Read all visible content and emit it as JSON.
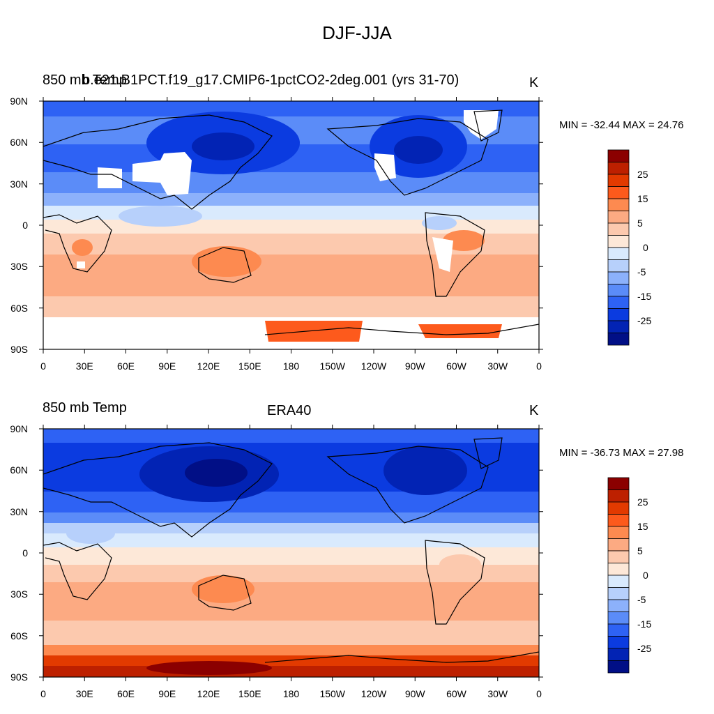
{
  "figure": {
    "title": "DJF-JJA"
  },
  "colorbar": {
    "labels": [
      "25",
      "15",
      "5",
      "0",
      "-5",
      "-15",
      "-25"
    ],
    "colors": [
      "#8b0000",
      "#bd2000",
      "#e23a00",
      "#fd5a1c",
      "#fd8a50",
      "#fcaa82",
      "#fcc9ae",
      "#fde8d8",
      "#d9eafd",
      "#b7d0fb",
      "#8cb1fb",
      "#5b8cf8",
      "#2e62f4",
      "#0b3be0",
      "#0223b4",
      "#010f86"
    ]
  },
  "axes": {
    "lat_ticks": [
      "90N",
      "60N",
      "30N",
      "0",
      "30S",
      "60S",
      "90S"
    ],
    "lon_ticks": [
      "0",
      "30E",
      "60E",
      "90E",
      "120E",
      "150E",
      "180",
      "150W",
      "120W",
      "90W",
      "60W",
      "30W",
      "0"
    ]
  },
  "panels": [
    {
      "left_title": "850 mb Temp",
      "center_title": "b.e21.B1PCT.f19_g17.CMIP6-1pctCO2-2deg.001 (yrs 31-70)",
      "units": "K",
      "min_max": "MIN = -32.44 MAX =  24.76"
    },
    {
      "left_title": "850 mb Temp",
      "center_title": "ERA40",
      "units": "K",
      "min_max": "MIN = -36.73 MAX =  27.98"
    }
  ]
}
